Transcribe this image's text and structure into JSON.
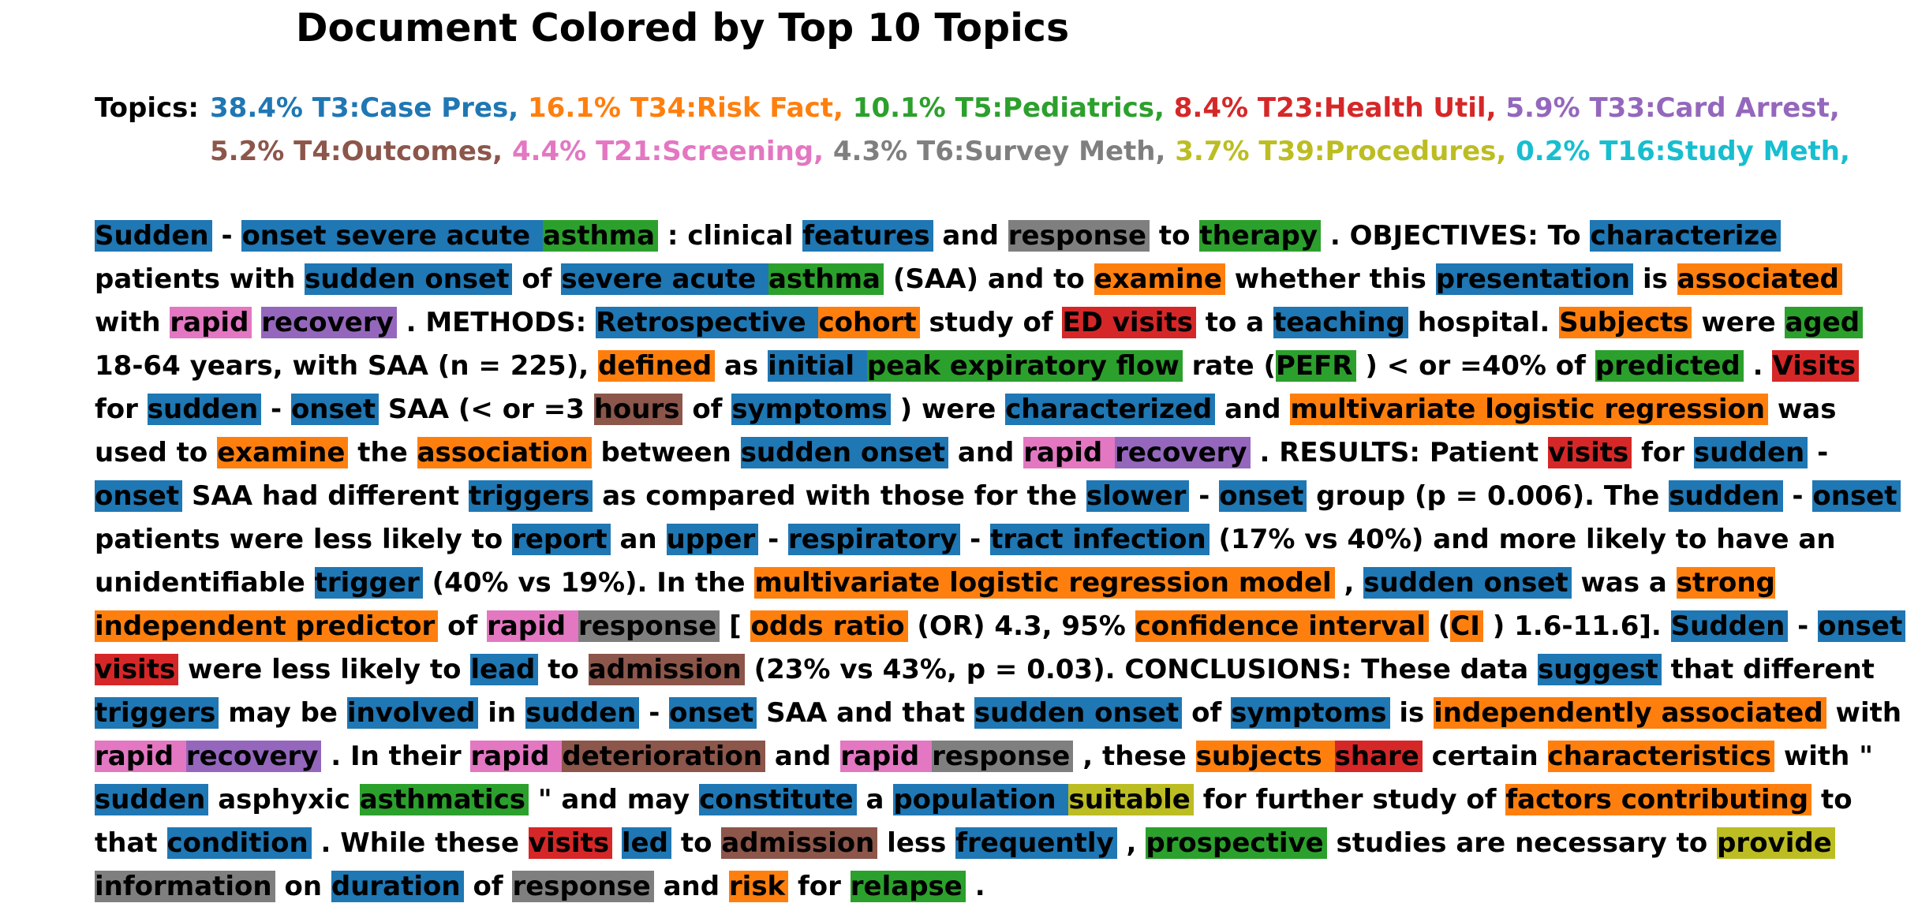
{
  "title": "Document Colored by Top 10 Topics",
  "topics_label": "Topics:",
  "topics": [
    {
      "text": "38.4% T3:Case Pres,",
      "color": "#1f77b4"
    },
    {
      "text": "16.1% T34:Risk Fact,",
      "color": "#ff7f0e"
    },
    {
      "text": "10.1% T5:Pediatrics,",
      "color": "#2ca02c"
    },
    {
      "text": "8.4% T23:Health Util,",
      "color": "#d62728"
    },
    {
      "text": "5.9% T33:Card Arrest,",
      "color": "#9467bd"
    },
    {
      "text": "5.2% T4:Outcomes,",
      "color": "#8c564b"
    },
    {
      "text": "4.4% T21:Screening,",
      "color": "#e377c2"
    },
    {
      "text": "4.3% T6:Survey Meth,",
      "color": "#7f7f7f"
    },
    {
      "text": "3.7% T39:Procedures,",
      "color": "#bcbd22"
    },
    {
      "text": "0.2% T16:Study Meth,",
      "color": "#17becf"
    }
  ],
  "colors": {
    "b": "#1f77b4",
    "o": "#ff7f0e",
    "g": "#2ca02c",
    "r": "#d62728",
    "p": "#9467bd",
    "n": "#8c564b",
    "k": "#e377c2",
    "y": "#7f7f7f",
    "l": "#bcbd22"
  },
  "segments": [
    [
      "Sudden",
      "b"
    ],
    [
      "- "
    ],
    [
      "onset severe acute ",
      "b"
    ],
    [
      "asthma",
      "g"
    ],
    [
      ": clinical "
    ],
    [
      "features",
      "b"
    ],
    [
      "and "
    ],
    [
      "response",
      "y"
    ],
    [
      "to "
    ],
    [
      "therapy",
      "g"
    ],
    [
      ". OBJECTIVES: To "
    ],
    [
      "characterize",
      "b"
    ],
    [
      "patients with "
    ],
    [
      "sudden onset",
      "b"
    ],
    [
      "of "
    ],
    [
      "severe acute ",
      "b"
    ],
    [
      "asthma",
      "g"
    ],
    [
      "(SAA) and to "
    ],
    [
      "examine",
      "o"
    ],
    [
      "whether this "
    ],
    [
      "presentation",
      "b"
    ],
    [
      "is "
    ],
    [
      "associated",
      "o"
    ],
    [
      "with "
    ],
    [
      "rapid",
      "k"
    ],
    [
      "recovery",
      "p"
    ],
    [
      ". METHODS: "
    ],
    [
      "Retrospective ",
      "b"
    ],
    [
      "cohort",
      "o"
    ],
    [
      "study of "
    ],
    [
      "ED visits",
      "r"
    ],
    [
      "to a "
    ],
    [
      "teaching",
      "b"
    ],
    [
      "hospital. "
    ],
    [
      "Subjects",
      "o"
    ],
    [
      "were "
    ],
    [
      "aged",
      "g"
    ],
    [
      "18-64 years, with SAA (n = 225), "
    ],
    [
      "defined",
      "o"
    ],
    [
      "as "
    ],
    [
      "initial ",
      "b"
    ],
    [
      "peak expiratory flow",
      "g"
    ],
    [
      "rate ("
    ],
    [
      "PEFR",
      "g"
    ],
    [
      ") < or =40% of "
    ],
    [
      "predicted",
      "g"
    ],
    [
      ". "
    ],
    [
      "Visits",
      "r"
    ],
    [
      "for "
    ],
    [
      "sudden",
      "b"
    ],
    [
      "- "
    ],
    [
      "onset",
      "b"
    ],
    [
      "SAA (< or =3 "
    ],
    [
      "hours",
      "n"
    ],
    [
      "of "
    ],
    [
      "symptoms",
      "b"
    ],
    [
      ") were "
    ],
    [
      "characterized",
      "b"
    ],
    [
      "and "
    ],
    [
      "multivariate logistic regression",
      "o"
    ],
    [
      "was used to "
    ],
    [
      "examine",
      "o"
    ],
    [
      "the "
    ],
    [
      "association",
      "o"
    ],
    [
      "between "
    ],
    [
      "sudden onset",
      "b"
    ],
    [
      "and "
    ],
    [
      "rapid ",
      "k"
    ],
    [
      "recovery",
      "p"
    ],
    [
      ". RESULTS: Patient "
    ],
    [
      "visits",
      "r"
    ],
    [
      "for "
    ],
    [
      "sudden",
      "b"
    ],
    [
      "- "
    ],
    [
      "onset",
      "b"
    ],
    [
      "SAA had different "
    ],
    [
      "triggers",
      "b"
    ],
    [
      "as compared with those for the "
    ],
    [
      "slower",
      "b"
    ],
    [
      "- "
    ],
    [
      "onset",
      "b"
    ],
    [
      "group (p = 0.006). The "
    ],
    [
      "sudden",
      "b"
    ],
    [
      "- "
    ],
    [
      "onset",
      "b"
    ],
    [
      "patients were less likely to "
    ],
    [
      "report",
      "b"
    ],
    [
      "an "
    ],
    [
      "upper",
      "b"
    ],
    [
      "- "
    ],
    [
      "respiratory",
      "b"
    ],
    [
      "- "
    ],
    [
      "tract infection",
      "b"
    ],
    [
      "(17% vs 40%) and more likely to have an unidentifiable "
    ],
    [
      "trigger",
      "b"
    ],
    [
      "(40% vs 19%). In the "
    ],
    [
      "multivariate logistic regression model",
      "o"
    ],
    [
      ", "
    ],
    [
      "sudden onset",
      "b"
    ],
    [
      "was a "
    ],
    [
      "strong independent predictor",
      "o"
    ],
    [
      "of "
    ],
    [
      "rapid ",
      "k"
    ],
    [
      "response",
      "y"
    ],
    [
      "[ "
    ],
    [
      "odds ratio",
      "o"
    ],
    [
      "(OR) 4.3, 95% "
    ],
    [
      "confidence interval",
      "o"
    ],
    [
      "("
    ],
    [
      "CI",
      "o"
    ],
    [
      ") 1.6-11.6]. "
    ],
    [
      "Sudden",
      "b"
    ],
    [
      "- "
    ],
    [
      "onset ",
      "b"
    ],
    [
      "visits",
      "r"
    ],
    [
      "were less likely to "
    ],
    [
      "lead",
      "b"
    ],
    [
      "to "
    ],
    [
      "admission",
      "n"
    ],
    [
      "(23% vs 43%, p = 0.03). CONCLUSIONS: These data "
    ],
    [
      "suggest",
      "b"
    ],
    [
      "that different "
    ],
    [
      "triggers",
      "b"
    ],
    [
      "may be "
    ],
    [
      "involved",
      "b"
    ],
    [
      "in "
    ],
    [
      "sudden",
      "b"
    ],
    [
      "- "
    ],
    [
      "onset",
      "b"
    ],
    [
      "SAA and that "
    ],
    [
      "sudden onset",
      "b"
    ],
    [
      "of "
    ],
    [
      "symptoms",
      "b"
    ],
    [
      "is "
    ],
    [
      "independently associated",
      "o"
    ],
    [
      "with "
    ],
    [
      "rapid ",
      "k"
    ],
    [
      "recovery",
      "p"
    ],
    [
      ". In their "
    ],
    [
      "rapid ",
      "k"
    ],
    [
      "deterioration",
      "n"
    ],
    [
      "and "
    ],
    [
      "rapid ",
      "k"
    ],
    [
      "response",
      "y"
    ],
    [
      ", these "
    ],
    [
      "subjects ",
      "o"
    ],
    [
      "share",
      "r"
    ],
    [
      "certain "
    ],
    [
      "characteristics",
      "o"
    ],
    [
      "with \" "
    ],
    [
      "sudden",
      "b"
    ],
    [
      "asphyxic "
    ],
    [
      "asthmatics",
      "g"
    ],
    [
      "\" and may "
    ],
    [
      "constitute",
      "b"
    ],
    [
      "a "
    ],
    [
      "population ",
      "b"
    ],
    [
      "suitable",
      "l"
    ],
    [
      "for further study of "
    ],
    [
      "factors contributing",
      "o"
    ],
    [
      "to that "
    ],
    [
      "condition",
      "b"
    ],
    [
      ". While these "
    ],
    [
      "visits",
      "r"
    ],
    [
      "led",
      "b"
    ],
    [
      "to "
    ],
    [
      "admission",
      "n"
    ],
    [
      "less "
    ],
    [
      "frequently",
      "b"
    ],
    [
      ", "
    ],
    [
      "prospective",
      "g"
    ],
    [
      "studies are necessary to "
    ],
    [
      "provide ",
      "l"
    ],
    [
      "information",
      "y"
    ],
    [
      "on "
    ],
    [
      "duration",
      "b"
    ],
    [
      "of "
    ],
    [
      "response",
      "y"
    ],
    [
      "and "
    ],
    [
      "risk",
      "o"
    ],
    [
      "for "
    ],
    [
      "relapse",
      "g"
    ],
    [
      "."
    ]
  ]
}
